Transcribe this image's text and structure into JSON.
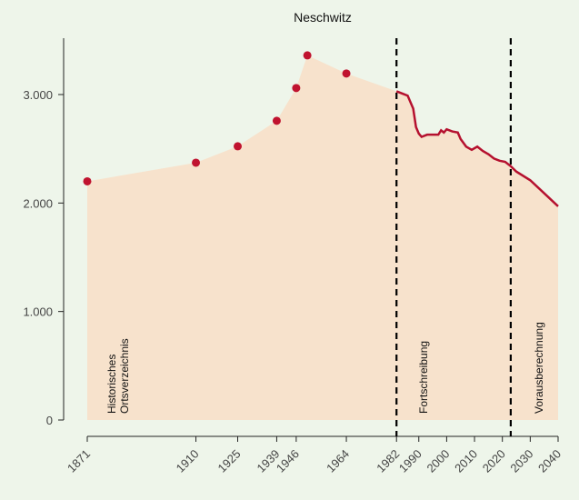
{
  "chart_data": {
    "type": "area",
    "title": "Neschwitz",
    "points": {
      "x": [
        1871,
        1910,
        1925,
        1939,
        1946,
        1950,
        1964
      ],
      "values": [
        2200,
        2372,
        2523,
        2758,
        3060,
        3361,
        3194
      ],
      "color": "#c0132f"
    },
    "line": {
      "x": [
        1982,
        1984,
        1986,
        1988,
        1989,
        1990,
        1991,
        1993,
        1995,
        1997,
        1998,
        1999,
        2000,
        2002,
        2004,
        2005,
        2007,
        2009,
        2011,
        2013,
        2015,
        2017,
        2019,
        2021,
        2023,
        2025,
        2030,
        2035,
        2040
      ],
      "values": [
        3030,
        3010,
        2990,
        2870,
        2700,
        2640,
        2610,
        2630,
        2630,
        2630,
        2670,
        2650,
        2680,
        2660,
        2650,
        2590,
        2520,
        2490,
        2520,
        2480,
        2450,
        2410,
        2390,
        2380,
        2340,
        2290,
        2210,
        2090,
        1970
      ],
      "color": "#b5112f"
    },
    "fill_color": "#f7e2cc",
    "breaks": [
      1982,
      2023
    ],
    "annotations": [
      "Historisches\nOrtsverzeichnis",
      "Fortschreibung",
      "Vorausberechnung"
    ],
    "xlim": [
      1871,
      2040
    ],
    "xticks": [
      1871,
      1910,
      1925,
      1939,
      1946,
      1964,
      1982,
      1990,
      2000,
      2010,
      2020,
      2030,
      2040
    ],
    "ylim": [
      0,
      3000
    ],
    "yticks": [
      0,
      {
        "value": 1000,
        "label": "1.000"
      },
      {
        "value": 2000,
        "label": "2.000"
      },
      {
        "value": 3000,
        "label": "3.000"
      }
    ]
  }
}
